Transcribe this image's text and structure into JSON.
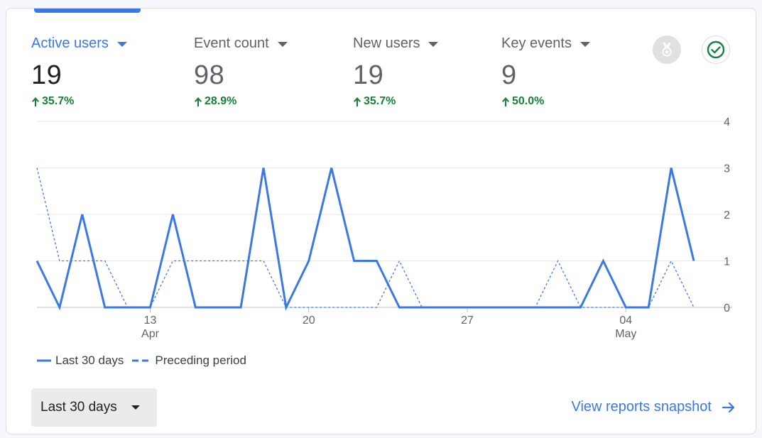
{
  "metrics": [
    {
      "label": "Active users",
      "value": "19",
      "change": "35.7%",
      "active": true
    },
    {
      "label": "Event count",
      "value": "98",
      "change": "28.9%",
      "active": false
    },
    {
      "label": "New users",
      "value": "19",
      "change": "35.7%",
      "active": false
    },
    {
      "label": "Key events",
      "value": "9",
      "change": "50.0%",
      "active": false
    }
  ],
  "icons": {
    "medal": "medal-icon",
    "check": "check-circle-icon",
    "arrow_up": "arrow-upward-icon",
    "arrow_right": "arrow-forward-icon"
  },
  "colors": {
    "accent": "#3b78e7",
    "positive": "#188038",
    "muted": "#5f6368"
  },
  "chart_data": {
    "type": "line",
    "x_ticks": [
      {
        "label": "13",
        "sub": "Apr",
        "index": 5
      },
      {
        "label": "20",
        "sub": "",
        "index": 12
      },
      {
        "label": "27",
        "sub": "",
        "index": 19
      },
      {
        "label": "04",
        "sub": "May",
        "index": 26
      }
    ],
    "y_ticks": [
      "0",
      "1",
      "2",
      "3",
      "4"
    ],
    "ylim": [
      0,
      4
    ],
    "series": [
      {
        "name": "Last 30 days",
        "style": "solid",
        "values": [
          1,
          0,
          2,
          0,
          0,
          0,
          2,
          0,
          0,
          0,
          3,
          0,
          1,
          3,
          1,
          1,
          0,
          0,
          0,
          0,
          0,
          0,
          0,
          0,
          0,
          1,
          0,
          0,
          3,
          1
        ]
      },
      {
        "name": "Preceding period",
        "style": "dashed",
        "values": [
          3,
          1,
          1,
          1,
          0,
          0,
          1,
          1,
          1,
          1,
          1,
          0,
          0,
          0,
          0,
          0,
          1,
          0,
          0,
          0,
          0,
          0,
          0,
          1,
          0,
          0,
          0,
          0,
          1,
          0
        ]
      }
    ],
    "legend_position": "bottom-left",
    "grid": true
  },
  "legend": {
    "current": "Last 30 days",
    "previous": "Preceding period"
  },
  "footer": {
    "range_label": "Last 30 days",
    "link_label": "View reports snapshot"
  }
}
